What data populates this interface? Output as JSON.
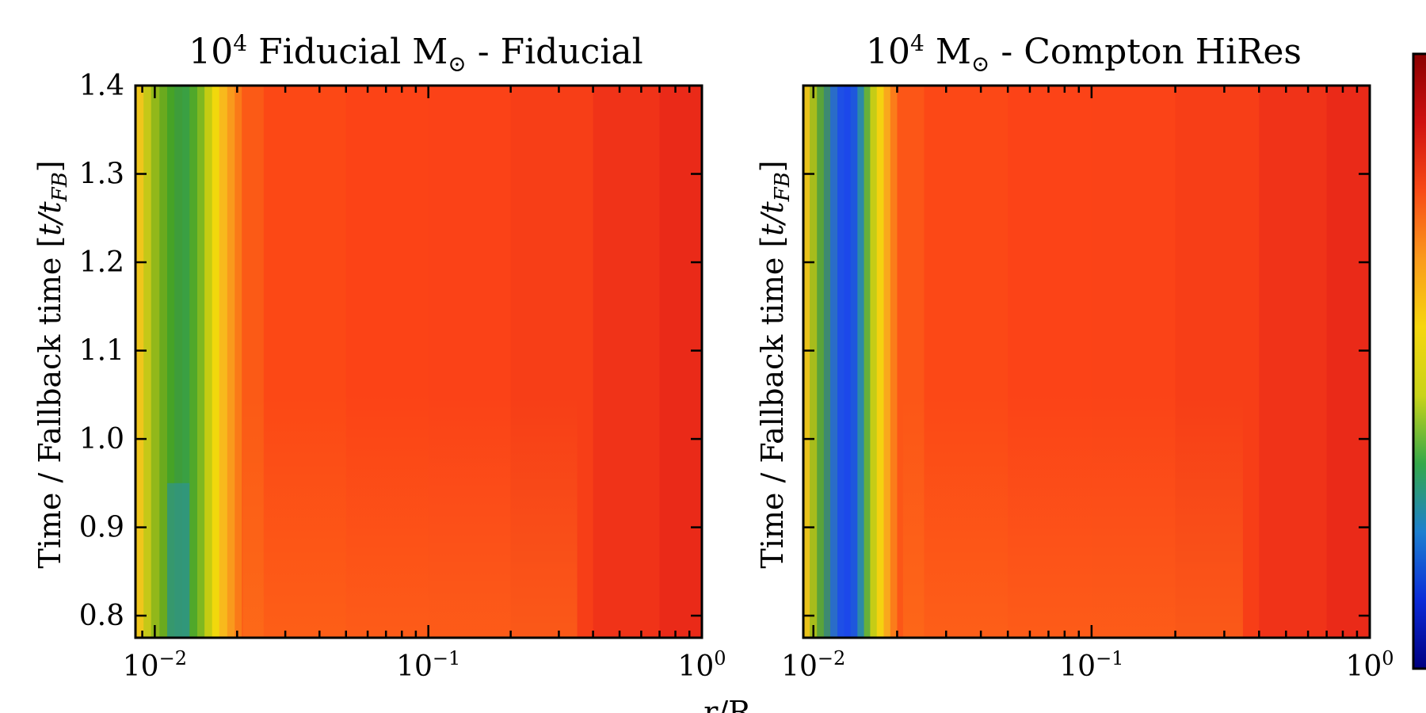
{
  "chart_data": [
    {
      "type": "heatmap",
      "title_base": "10",
      "title_exp": "4",
      "title_rest": " Fiducial M",
      "title_sub": "⊙",
      "title_tail": " - Fiducial",
      "ylabel_main": "Time / Fallback time [",
      "ylabel_var": "t/t",
      "ylabel_sub": "FB",
      "ylabel_end": "]",
      "xscale": "log",
      "xlim": [
        0.0085,
        1.0
      ],
      "ylim": [
        0.775,
        1.4
      ],
      "xticks": [
        {
          "value": 0.01,
          "base": "10",
          "exp": "−2"
        },
        {
          "value": 0.1,
          "base": "10",
          "exp": "−1"
        },
        {
          "value": 1.0,
          "base": "10",
          "exp": "0"
        }
      ],
      "yticks": [
        "0.8",
        "0.9",
        "1.0",
        "1.1",
        "1.2",
        "1.3",
        "1.4"
      ],
      "show_ytick_labels": true,
      "columns": [
        {
          "r": 0.0085,
          "color": "#f0c61c"
        },
        {
          "r": 0.0091,
          "color": "#c5c818"
        },
        {
          "r": 0.0097,
          "color": "#92b81a"
        },
        {
          "r": 0.0104,
          "color": "#6aaa1e"
        },
        {
          "r": 0.0111,
          "color": "#46a326"
        },
        {
          "r": 0.0118,
          "color": "#3e9d3a"
        },
        {
          "r": 0.0126,
          "color": "#3aa043"
        },
        {
          "r": 0.0134,
          "color": "#50a82a"
        },
        {
          "r": 0.0143,
          "color": "#80b820"
        },
        {
          "r": 0.0152,
          "color": "#c5cc12"
        },
        {
          "r": 0.0162,
          "color": "#f1d80c"
        },
        {
          "r": 0.0172,
          "color": "#f8b91c"
        },
        {
          "r": 0.0184,
          "color": "#f99a1c"
        },
        {
          "r": 0.0196,
          "color": "#fa7a18"
        },
        {
          "r": 0.0208,
          "color": "#fb5a16"
        },
        {
          "r": 0.025,
          "color": "#fc4815"
        },
        {
          "r": 0.05,
          "color": "#fc4316"
        },
        {
          "r": 0.1,
          "color": "#fb4217"
        },
        {
          "r": 0.2,
          "color": "#f73e17"
        },
        {
          "r": 0.4,
          "color": "#f03318"
        },
        {
          "r": 0.7,
          "color": "#ea2a18"
        },
        {
          "r": 1.0,
          "color": "#e01f14"
        }
      ],
      "bottom_glow": {
        "color": "#ff7a1a",
        "top_time": 1.05
      },
      "accent_patches": [
        {
          "r_from": 0.0111,
          "r_to": 0.0134,
          "t_from": 0.775,
          "t_to": 0.95,
          "color": "#2a8fa8"
        }
      ]
    },
    {
      "type": "heatmap",
      "title_base": "10",
      "title_exp": "4",
      "title_rest": " M",
      "title_sub": "⊙",
      "title_tail": " - Compton HiRes",
      "ylabel_main": "Time / Fallback time [",
      "ylabel_var": "t/t",
      "ylabel_sub": "FB",
      "ylabel_end": "]",
      "xscale": "log",
      "xlim": [
        0.0092,
        1.0
      ],
      "ylim": [
        0.775,
        1.4
      ],
      "xticks": [
        {
          "value": 0.01,
          "base": "10",
          "exp": "−2"
        },
        {
          "value": 0.1,
          "base": "10",
          "exp": "−1"
        },
        {
          "value": 1.0,
          "base": "10",
          "exp": "0"
        }
      ],
      "yticks": [
        "0.8",
        "0.9",
        "1.0",
        "1.1",
        "1.2",
        "1.3",
        "1.4"
      ],
      "show_ytick_labels": false,
      "columns": [
        {
          "r": 0.0092,
          "color": "#e9c21a"
        },
        {
          "r": 0.0097,
          "color": "#a6bc1c"
        },
        {
          "r": 0.0103,
          "color": "#5aa33a"
        },
        {
          "r": 0.0109,
          "color": "#3d8a70"
        },
        {
          "r": 0.0115,
          "color": "#2a6cc8"
        },
        {
          "r": 0.0122,
          "color": "#1e4fe6"
        },
        {
          "r": 0.0129,
          "color": "#1c48ea"
        },
        {
          "r": 0.0136,
          "color": "#1e57dc"
        },
        {
          "r": 0.0144,
          "color": "#2c8aa6"
        },
        {
          "r": 0.0152,
          "color": "#66b03a"
        },
        {
          "r": 0.016,
          "color": "#c6cc16"
        },
        {
          "r": 0.0169,
          "color": "#f4d210"
        },
        {
          "r": 0.0179,
          "color": "#f9a81c"
        },
        {
          "r": 0.0189,
          "color": "#fb7c1a"
        },
        {
          "r": 0.02,
          "color": "#fc5617"
        },
        {
          "r": 0.025,
          "color": "#fc4816"
        },
        {
          "r": 0.05,
          "color": "#fc4317"
        },
        {
          "r": 0.1,
          "color": "#fb4317"
        },
        {
          "r": 0.2,
          "color": "#f73e17"
        },
        {
          "r": 0.4,
          "color": "#f03318"
        },
        {
          "r": 0.7,
          "color": "#ea2a18"
        },
        {
          "r": 1.0,
          "color": "#e12016"
        }
      ],
      "bottom_glow": {
        "color": "#ff7a1a",
        "top_time": 1.05
      },
      "accent_patches": []
    }
  ],
  "xlabel": "r/R",
  "colorbar": {
    "stops": [
      "#000080",
      "#0b2bd8",
      "#1c7fd0",
      "#34a84a",
      "#c8d41a",
      "#f6d60e",
      "#fa9a1c",
      "#f84a16",
      "#cf1010",
      "#8a0000"
    ]
  }
}
